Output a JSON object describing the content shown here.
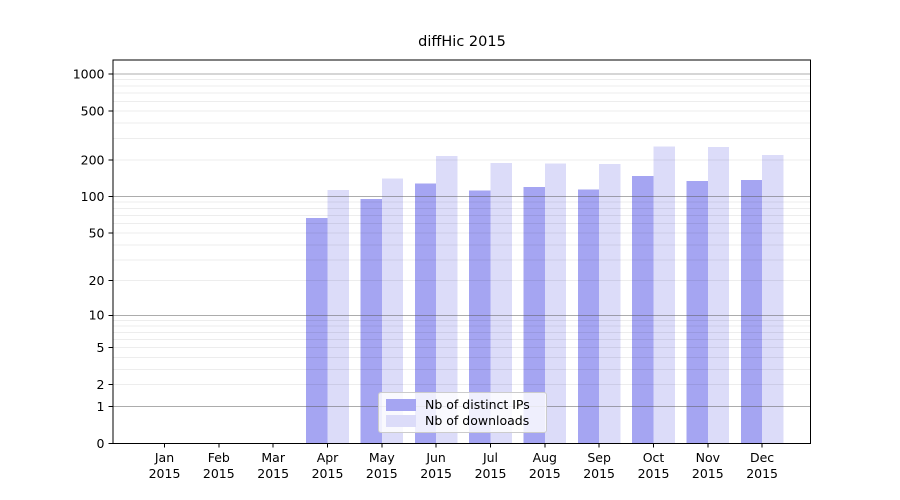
{
  "chart_data": {
    "type": "bar",
    "title": "diffHic 2015",
    "year": "2015",
    "categories": [
      "Jan",
      "Feb",
      "Mar",
      "Apr",
      "May",
      "Jun",
      "Jul",
      "Aug",
      "Sep",
      "Oct",
      "Nov",
      "Dec"
    ],
    "series": [
      {
        "name": "Nb of distinct IPs",
        "color": "#a5a5f2",
        "values": [
          0,
          0,
          0,
          67,
          96,
          128,
          112,
          120,
          115,
          148,
          135,
          137
        ]
      },
      {
        "name": "Nb of downloads",
        "color": "#dcdcf9",
        "values": [
          0,
          0,
          0,
          113,
          141,
          215,
          188,
          187,
          185,
          256,
          254,
          220
        ]
      }
    ],
    "yticks": [
      1000,
      500,
      200,
      100,
      50,
      20,
      10,
      5,
      2,
      1,
      0
    ],
    "ylim": [
      0,
      1000
    ],
    "yscale": "log1p",
    "grid": true,
    "legend_position": "lower-center-inside",
    "colors": {
      "axis": "#000000",
      "grid_major": "#9a9a9a",
      "grid_minor": "#e9e9e9",
      "background": "#ffffff"
    }
  }
}
